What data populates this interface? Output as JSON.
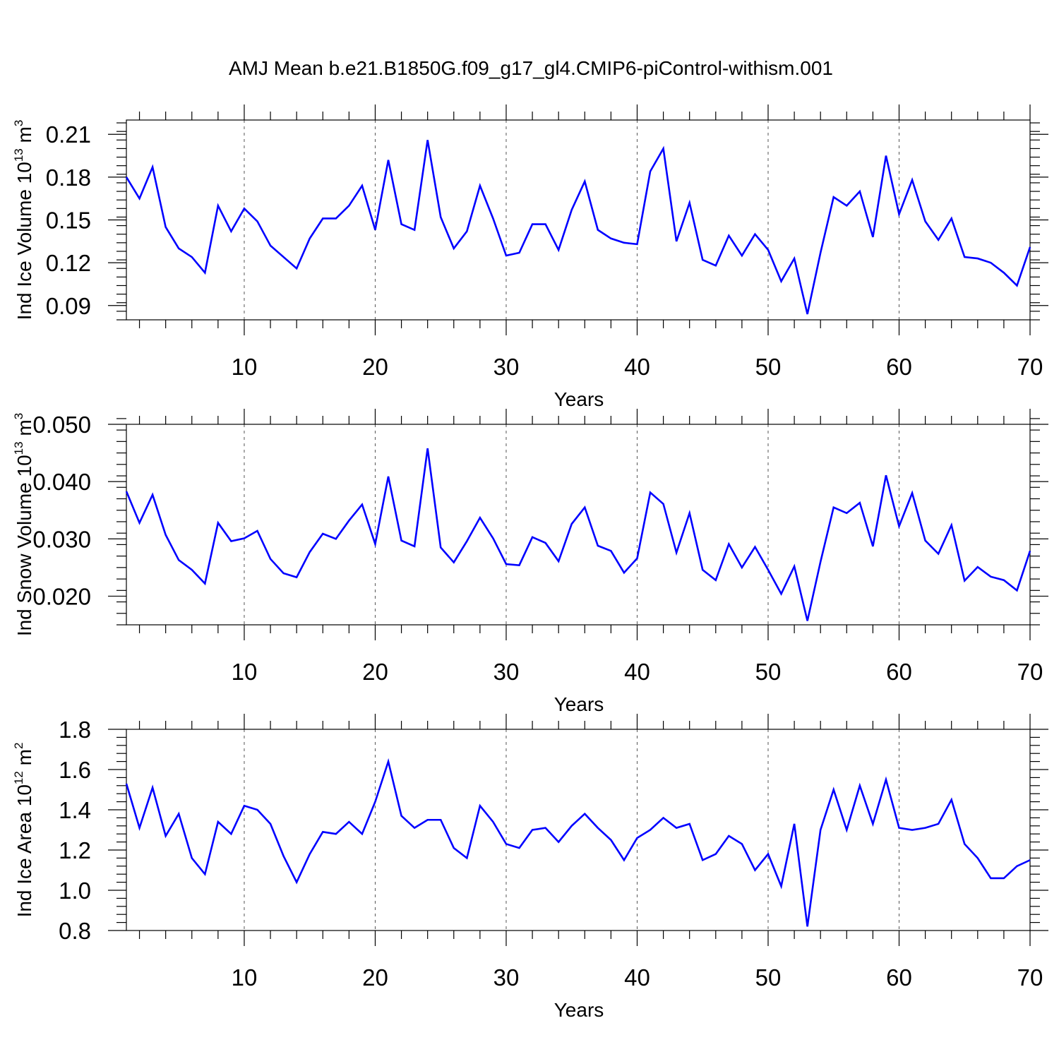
{
  "title": "AMJ Mean b.e21.B1850G.f09_g17_gl4.CMIP6-piControl-withism.001",
  "colors": {
    "series": "#0000ff",
    "axes": "#000000",
    "grid": "#555555"
  },
  "chart_data": [
    {
      "type": "line",
      "ylabel": "Ind Ice Volume 10",
      "ylabel_sup": "13",
      "ylabel_unit": "m",
      "ylabel_unit_sup": "3",
      "xlabel": "Years",
      "xlim": [
        1,
        70
      ],
      "ylim": [
        0.08,
        0.22
      ],
      "xticks": [
        10,
        20,
        30,
        40,
        50,
        60,
        70
      ],
      "xticklabels": [
        "10",
        "20",
        "30",
        "40",
        "50",
        "60",
        "70"
      ],
      "yticks": [
        0.09,
        0.12,
        0.15,
        0.18,
        0.21
      ],
      "yticklabels": [
        "0.09",
        "0.12",
        "0.15",
        "0.18",
        "0.21"
      ],
      "yminor_step": 0.006,
      "grid_x": true,
      "series": [
        {
          "values": [
            0.18,
            0.165,
            0.187,
            0.145,
            0.13,
            0.124,
            0.113,
            0.16,
            0.142,
            0.158,
            0.149,
            0.132,
            0.124,
            0.116,
            0.137,
            0.151,
            0.151,
            0.16,
            0.174,
            0.143,
            0.192,
            0.147,
            0.143,
            0.206,
            0.152,
            0.13,
            0.142,
            0.174,
            0.151,
            0.125,
            0.127,
            0.147,
            0.147,
            0.129,
            0.157,
            0.177,
            0.143,
            0.137,
            0.134,
            0.133,
            0.184,
            0.2,
            0.135,
            0.162,
            0.122,
            0.118,
            0.139,
            0.125,
            0.14,
            0.129,
            0.107,
            0.123,
            0.084,
            0.127,
            0.166,
            0.16,
            0.17,
            0.138,
            0.195,
            0.154,
            0.178,
            0.149,
            0.136,
            0.151,
            0.124,
            0.123,
            0.12,
            0.113,
            0.104,
            0.131
          ]
        }
      ]
    },
    {
      "type": "line",
      "ylabel": "Ind Snow Volume 10",
      "ylabel_sup": "13",
      "ylabel_unit": "m",
      "ylabel_unit_sup": "3",
      "xlabel": "Years",
      "xlim": [
        1,
        70
      ],
      "ylim": [
        0.015,
        0.05
      ],
      "xticks": [
        10,
        20,
        30,
        40,
        50,
        60,
        70
      ],
      "xticklabels": [
        "10",
        "20",
        "30",
        "40",
        "50",
        "60",
        "70"
      ],
      "yticks": [
        0.02,
        0.03,
        0.04,
        0.05
      ],
      "yticklabels": [
        "0.020",
        "0.030",
        "0.040",
        "0.050"
      ],
      "yminor_step": 0.002,
      "grid_x": true,
      "series": [
        {
          "values": [
            0.0383,
            0.0328,
            0.0377,
            0.0307,
            0.0263,
            0.0246,
            0.0222,
            0.0328,
            0.0296,
            0.0301,
            0.0314,
            0.0265,
            0.024,
            0.0233,
            0.0277,
            0.0309,
            0.03,
            0.0332,
            0.036,
            0.0291,
            0.0409,
            0.0297,
            0.0287,
            0.0458,
            0.0285,
            0.0259,
            0.0296,
            0.0337,
            0.0301,
            0.0256,
            0.0254,
            0.0303,
            0.0293,
            0.0261,
            0.0326,
            0.0355,
            0.0288,
            0.0279,
            0.0241,
            0.0266,
            0.0381,
            0.0361,
            0.0276,
            0.0345,
            0.0246,
            0.0228,
            0.0291,
            0.025,
            0.0286,
            0.0246,
            0.0204,
            0.0252,
            0.0157,
            0.026,
            0.0355,
            0.0345,
            0.0363,
            0.0287,
            0.0411,
            0.0322,
            0.038,
            0.0297,
            0.0274,
            0.0324,
            0.0227,
            0.0251,
            0.0234,
            0.0228,
            0.021,
            0.0279
          ]
        }
      ]
    },
    {
      "type": "line",
      "ylabel": "Ind Ice Area 10",
      "ylabel_sup": "12",
      "ylabel_unit": "m",
      "ylabel_unit_sup": "2",
      "xlabel": "Years",
      "xlim": [
        1,
        70
      ],
      "ylim": [
        0.8,
        1.8
      ],
      "xticks": [
        10,
        20,
        30,
        40,
        50,
        60,
        70
      ],
      "xticklabels": [
        "10",
        "20",
        "30",
        "40",
        "50",
        "60",
        "70"
      ],
      "yticks": [
        0.8,
        1.0,
        1.2,
        1.4,
        1.6,
        1.8
      ],
      "yticklabels": [
        "0.8",
        "1.0",
        "1.2",
        "1.4",
        "1.6",
        "1.8"
      ],
      "yminor_step": 0.04,
      "grid_x": true,
      "series": [
        {
          "values": [
            1.53,
            1.31,
            1.51,
            1.27,
            1.38,
            1.16,
            1.08,
            1.34,
            1.28,
            1.42,
            1.4,
            1.33,
            1.17,
            1.04,
            1.18,
            1.29,
            1.28,
            1.34,
            1.28,
            1.44,
            1.64,
            1.37,
            1.31,
            1.35,
            1.35,
            1.21,
            1.16,
            1.42,
            1.34,
            1.23,
            1.21,
            1.3,
            1.31,
            1.24,
            1.32,
            1.38,
            1.31,
            1.25,
            1.15,
            1.26,
            1.3,
            1.36,
            1.31,
            1.33,
            1.15,
            1.18,
            1.27,
            1.23,
            1.1,
            1.18,
            1.02,
            1.33,
            0.82,
            1.3,
            1.5,
            1.3,
            1.52,
            1.33,
            1.55,
            1.31,
            1.3,
            1.31,
            1.33,
            1.45,
            1.23,
            1.16,
            1.06,
            1.06,
            1.12,
            1.15
          ]
        }
      ]
    }
  ]
}
